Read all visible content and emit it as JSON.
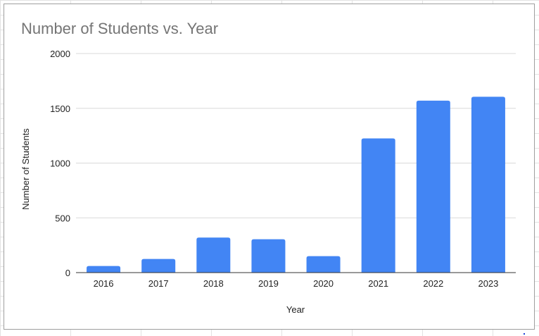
{
  "chart_data": {
    "type": "bar",
    "title": "Number of Students vs. Year",
    "xlabel": "Year",
    "ylabel": "Number of Students",
    "categories": [
      "2016",
      "2017",
      "2018",
      "2019",
      "2020",
      "2021",
      "2022",
      "2023"
    ],
    "values": [
      60,
      125,
      320,
      305,
      150,
      1225,
      1570,
      1605
    ],
    "ylim": [
      0,
      2000
    ],
    "yticks": [
      "0",
      "500",
      "1000",
      "1500",
      "2000"
    ],
    "grid": true,
    "legend": "none",
    "bar_color": "#4285f4"
  }
}
